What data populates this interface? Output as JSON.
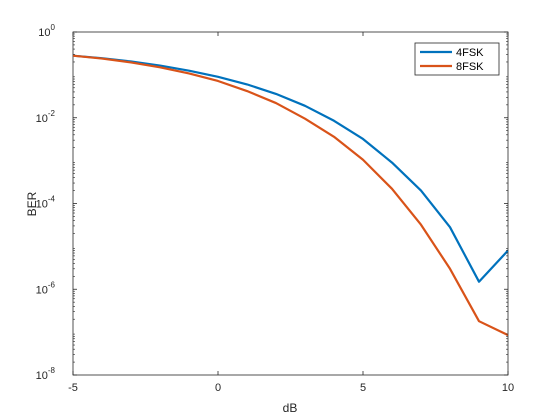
{
  "chart_data": {
    "type": "line",
    "title": "",
    "xlabel": "dB",
    "ylabel": "BER",
    "xlim": [
      -5,
      10
    ],
    "ylim": [
      1e-08,
      1
    ],
    "yscale": "log",
    "grid": false,
    "legend_position": "top-right",
    "x_ticks": [
      {
        "value": -5,
        "label": "-5"
      },
      {
        "value": 0,
        "label": "0"
      },
      {
        "value": 5,
        "label": "5"
      },
      {
        "value": 10,
        "label": "10"
      }
    ],
    "y_ticks": [
      {
        "exp": -8,
        "base": "10",
        "sup": "-8"
      },
      {
        "exp": -6,
        "base": "10",
        "sup": "-6"
      },
      {
        "exp": -4,
        "base": "10",
        "sup": "-4"
      },
      {
        "exp": -2,
        "base": "10",
        "sup": "-2"
      },
      {
        "exp": 0,
        "base": "10",
        "sup": "0"
      }
    ],
    "series": [
      {
        "name": "4FSK",
        "color": "#0072BD",
        "points": [
          [
            -5,
            0.28
          ],
          [
            -4,
            0.245
          ],
          [
            -3,
            0.205
          ],
          [
            -2,
            0.165
          ],
          [
            -1,
            0.125
          ],
          [
            0,
            0.09
          ],
          [
            1,
            0.06
          ],
          [
            2,
            0.036
          ],
          [
            3,
            0.019
          ],
          [
            4,
            0.0085
          ],
          [
            5,
            0.0032
          ],
          [
            6,
            0.0009
          ],
          [
            7,
            0.0002
          ],
          [
            8,
            2.8e-05
          ],
          [
            9,
            1.5e-06
          ],
          [
            10,
            8e-06
          ]
        ]
      },
      {
        "name": "8FSK",
        "color": "#D95319",
        "points": [
          [
            -5,
            0.28
          ],
          [
            -4,
            0.24
          ],
          [
            -3,
            0.195
          ],
          [
            -2,
            0.15
          ],
          [
            -1,
            0.108
          ],
          [
            0,
            0.072
          ],
          [
            1,
            0.042
          ],
          [
            2,
            0.022
          ],
          [
            3,
            0.0095
          ],
          [
            4,
            0.0036
          ],
          [
            5,
            0.00105
          ],
          [
            6,
            0.00022
          ],
          [
            7,
            3.2e-05
          ],
          [
            8,
            3e-06
          ],
          [
            9,
            1.8e-07
          ],
          [
            10,
            8.5e-08
          ]
        ]
      }
    ]
  }
}
